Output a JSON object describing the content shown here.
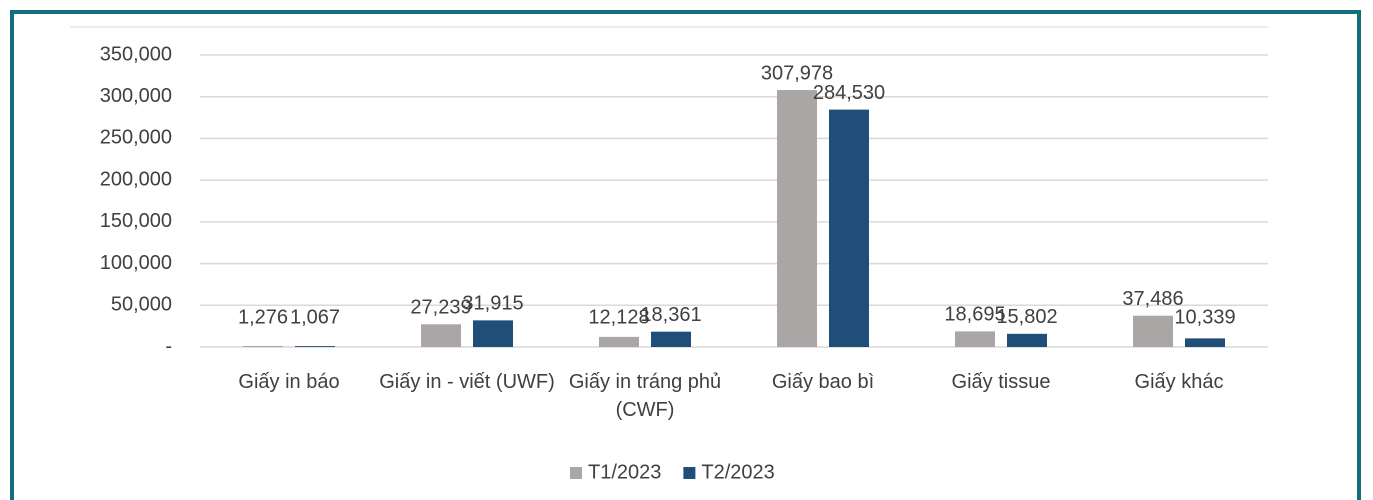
{
  "chart_data": {
    "type": "bar",
    "categories": [
      "Giấy in báo",
      "Giấy in - viết (UWF)",
      "Giấy in tráng phủ (CWF)",
      "Giấy bao bì",
      "Giấy tissue",
      "Giấy khác"
    ],
    "series": [
      {
        "name": "T1/2023",
        "color": "#a9a6a5",
        "values": [
          1276,
          27239,
          12128,
          307978,
          18695,
          37486
        ],
        "value_labels": [
          "1,276",
          "27,239",
          "12,128",
          "307,978",
          "18,695",
          "37,486"
        ]
      },
      {
        "name": "T2/2023",
        "color": "#1f4e79",
        "values": [
          1067,
          31915,
          18361,
          284530,
          15802,
          10339
        ],
        "value_labels": [
          "1,067",
          "31,915",
          "18,361",
          "284,530",
          "15,802",
          "10,339"
        ]
      }
    ],
    "ylim": [
      0,
      350000
    ],
    "yticks": [
      {
        "value": 0,
        "label": "-"
      },
      {
        "value": 50000,
        "label": "50,000"
      },
      {
        "value": 100000,
        "label": "100,000"
      },
      {
        "value": 150000,
        "label": "150,000"
      },
      {
        "value": 200000,
        "label": "200,000"
      },
      {
        "value": 250000,
        "label": "250,000"
      },
      {
        "value": 300000,
        "label": "300,000"
      },
      {
        "value": 350000,
        "label": "350,000"
      }
    ],
    "grid": true,
    "legend": "bottom"
  }
}
